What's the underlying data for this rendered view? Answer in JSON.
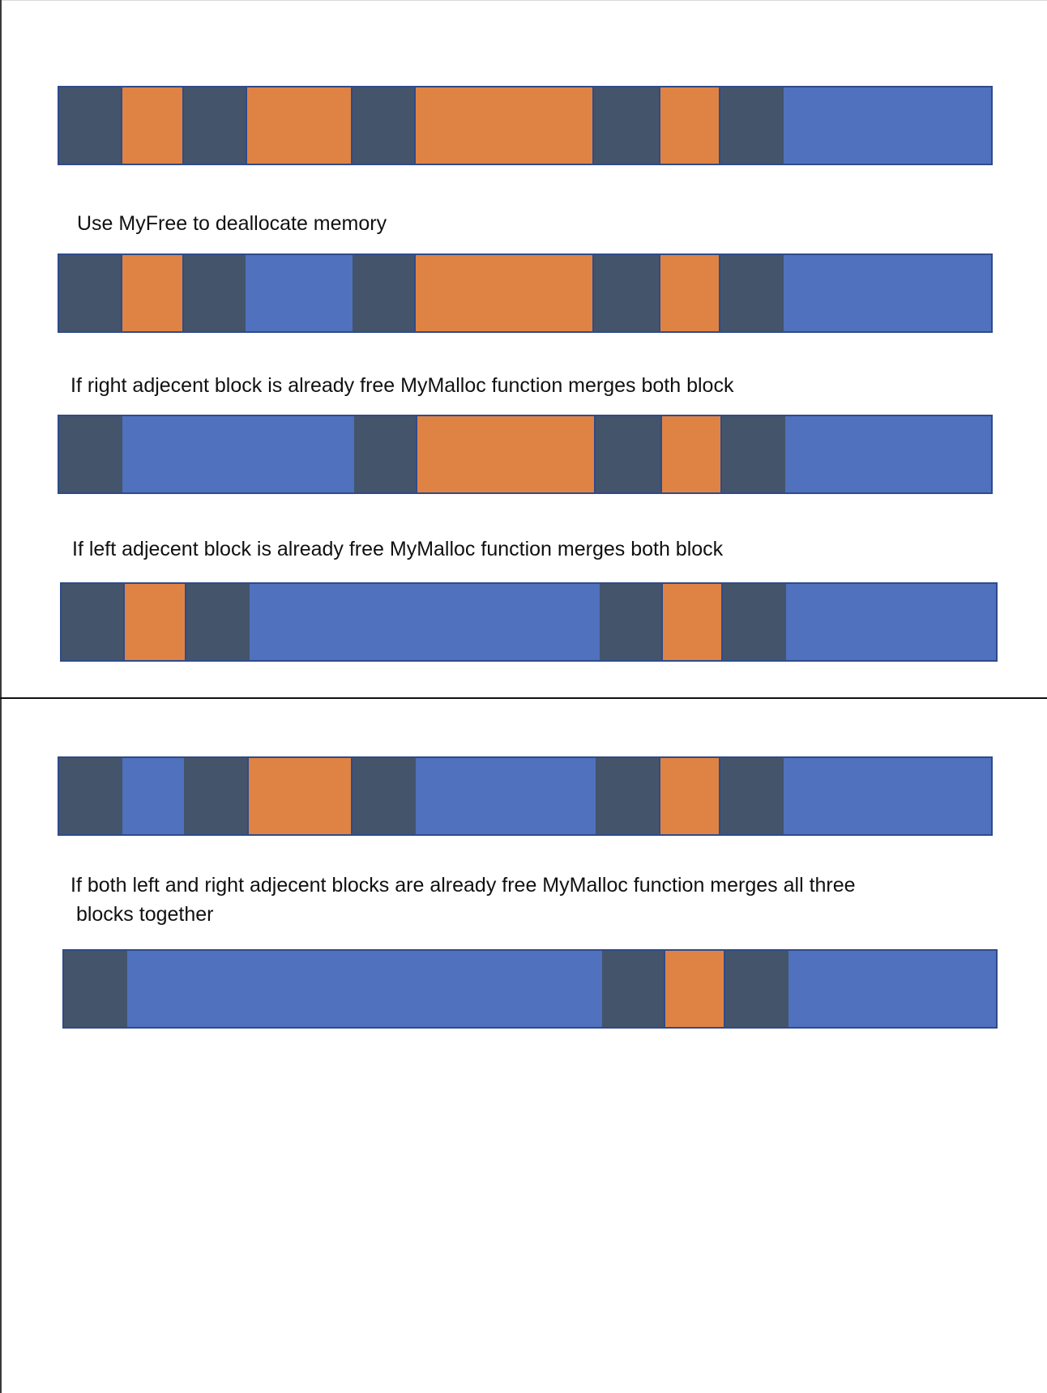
{
  "captions": {
    "c1": "Use MyFree to deallocate memory",
    "c2": "If right adjecent block is already free MyMalloc function merges both block",
    "c3": "If left adjecent block is already free MyMalloc function merges both block",
    "c4_line1": "If both left and right adjecent blocks are already free MyMalloc function merges all three",
    "c4_line2": " blocks together"
  },
  "legend_colors": {
    "header": "#44546a",
    "used": "#df8344",
    "free": "#4f71be"
  },
  "memory_bars": [
    {
      "id": "bar1",
      "segments": [
        "header",
        "used",
        "header",
        "used",
        "header",
        "used",
        "header",
        "used",
        "header",
        "free"
      ]
    },
    {
      "id": "bar2",
      "segments": [
        "header",
        "used",
        "header",
        "free",
        "header",
        "used",
        "header",
        "used",
        "header",
        "free"
      ]
    },
    {
      "id": "bar3",
      "segments": [
        "header",
        "free",
        "header",
        "used",
        "header",
        "used",
        "header",
        "free"
      ]
    },
    {
      "id": "bar4",
      "segments": [
        "header",
        "used",
        "header",
        "free",
        "header",
        "used",
        "header",
        "free"
      ]
    },
    {
      "id": "bar5",
      "segments": [
        "header",
        "free",
        "header",
        "used",
        "header",
        "free",
        "header",
        "used",
        "header",
        "free"
      ]
    },
    {
      "id": "bar6",
      "segments": [
        "header",
        "free",
        "header",
        "used",
        "header",
        "free"
      ]
    }
  ]
}
